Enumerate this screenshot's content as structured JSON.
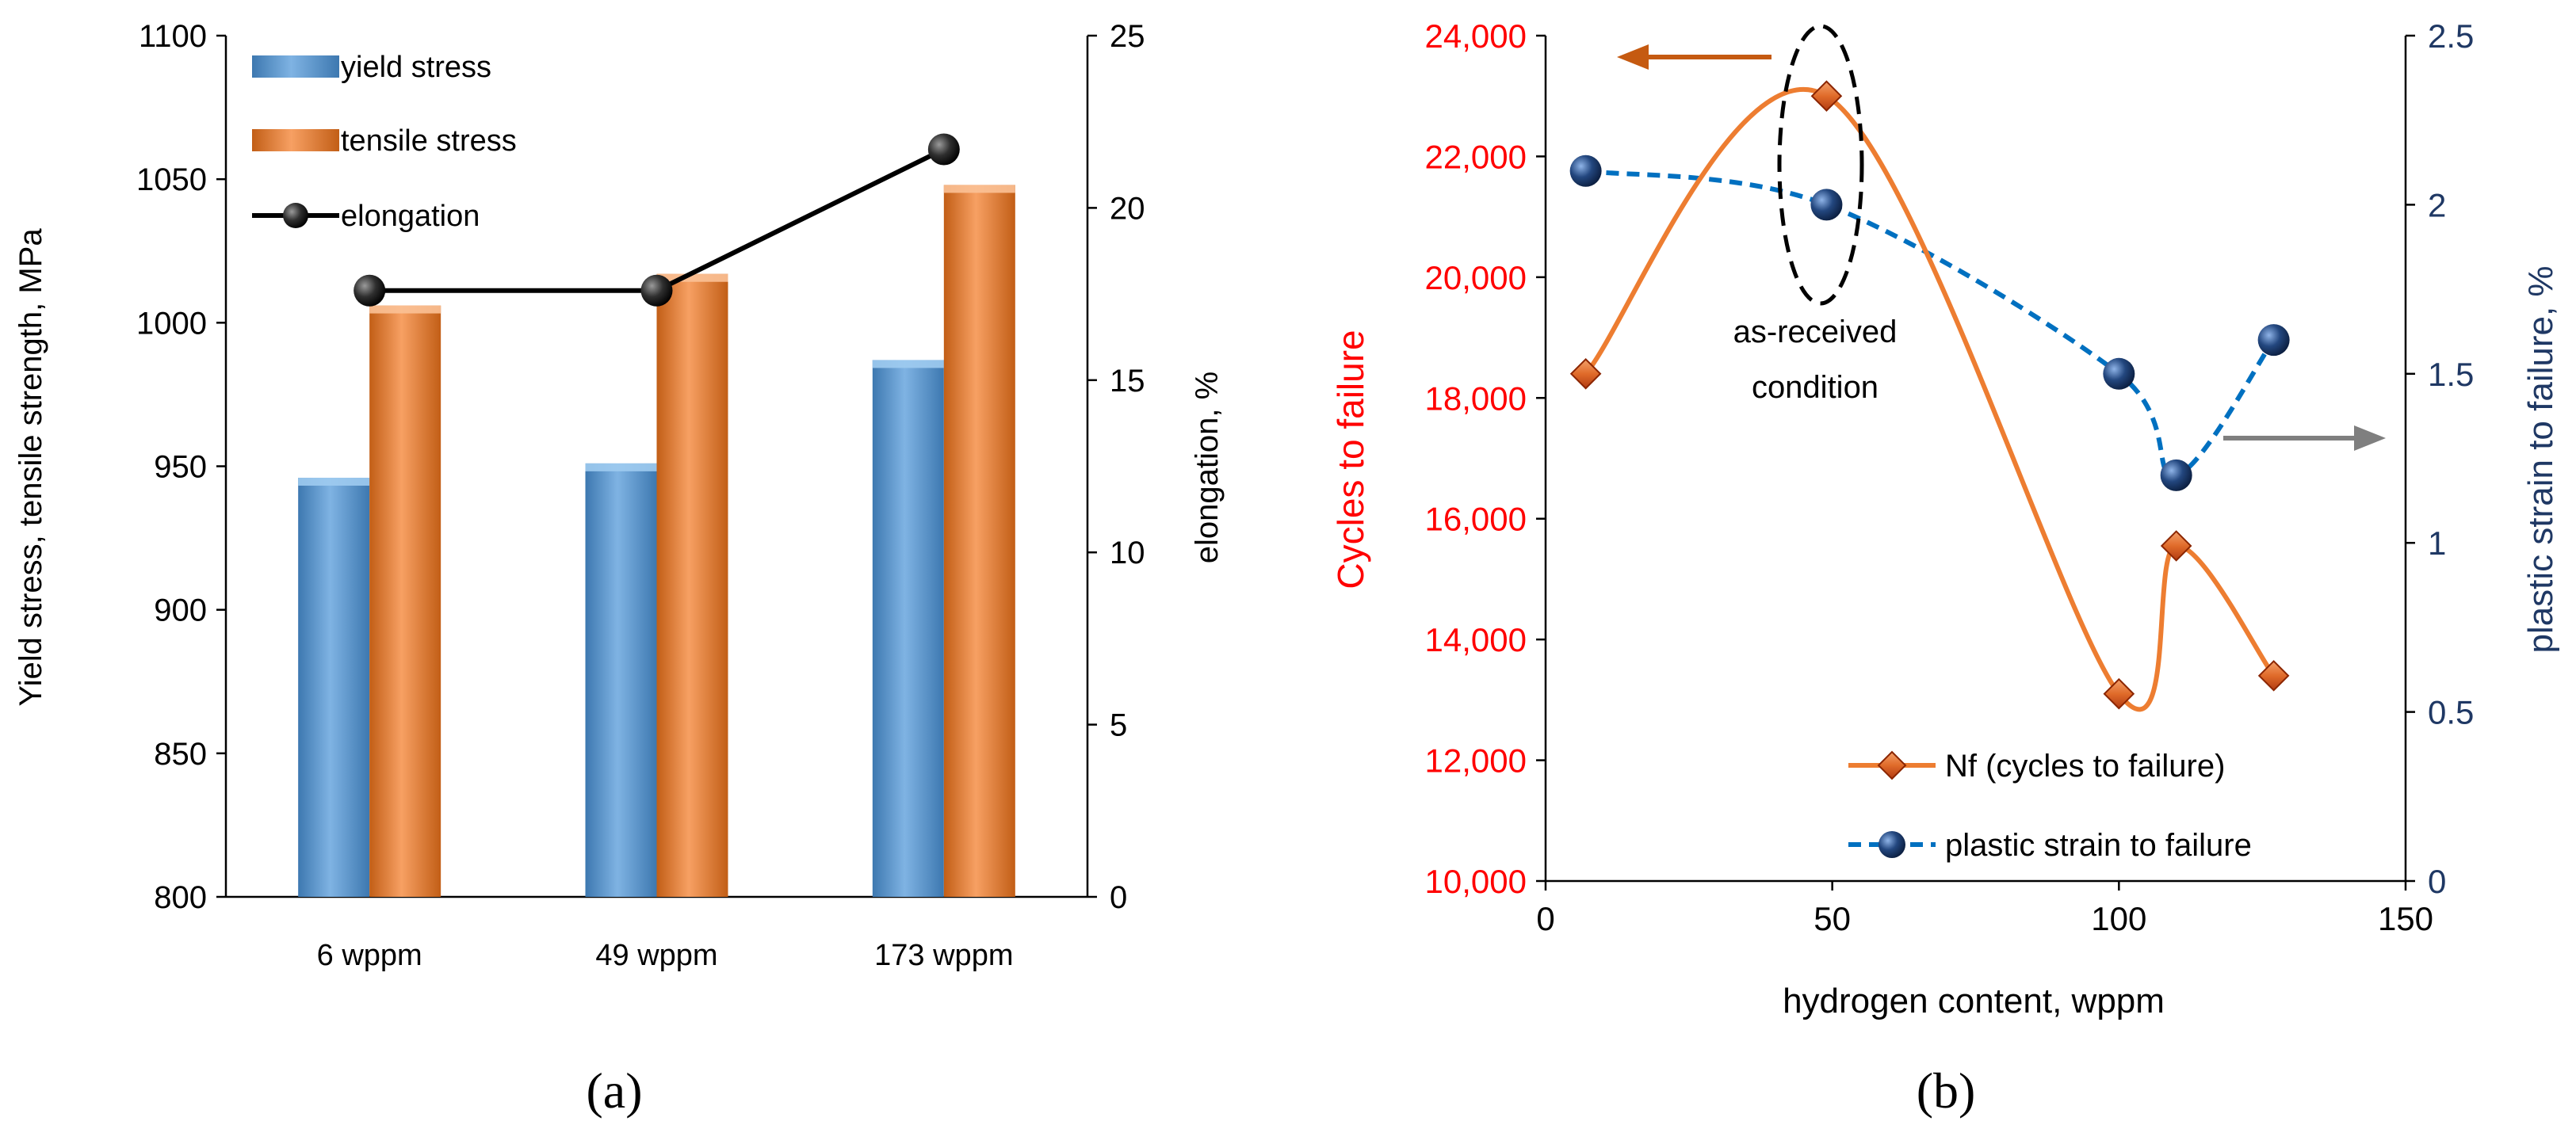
{
  "chart_data": [
    {
      "panel": "a",
      "type": "bar",
      "caption": "(a)",
      "categories": [
        "6 wppm",
        "49 wppm",
        "173 wppm"
      ],
      "series": [
        {
          "name": "yield stress",
          "axis": "left",
          "values": [
            946,
            951,
            987
          ],
          "color": "#5B9BD5"
        },
        {
          "name": "tensile stress",
          "axis": "left",
          "values": [
            1006,
            1017,
            1048
          ],
          "color": "#ED7D31"
        },
        {
          "name": "elongation",
          "axis": "right",
          "type": "line",
          "values": [
            17.6,
            17.6,
            21.7
          ],
          "color": "#000000"
        }
      ],
      "ylabel": "Yield stress, tensile strength, MPa",
      "ylabel_right": "elongation, %",
      "ylim": [
        800,
        1100
      ],
      "yticks": [
        "800",
        "850",
        "900",
        "950",
        "1000",
        "1050",
        "1100"
      ],
      "ylim_right": [
        0,
        25
      ],
      "yticks_right": [
        "0",
        "5",
        "10",
        "15",
        "20",
        "25"
      ],
      "legend": [
        "yield stress",
        "tensile stress",
        "elongation"
      ],
      "legend_position": "top-left"
    },
    {
      "panel": "b",
      "type": "line",
      "caption": "(b)",
      "xlabel": "hydrogen content, wppm",
      "xlim": [
        0,
        150
      ],
      "xticks": [
        "0",
        "50",
        "100",
        "150"
      ],
      "ylabel": "Cycles to failure",
      "ylim": [
        10000,
        24000
      ],
      "yticks": [
        "10,000",
        "12,000",
        "14,000",
        "16,000",
        "18,000",
        "20,000",
        "22,000",
        "24,000"
      ],
      "ylabel_right": "plastic strain to failure, %",
      "ylim_right": [
        0,
        2.5
      ],
      "yticks_right": [
        "0",
        "0.5",
        "1",
        "1.5",
        "2",
        "2.5"
      ],
      "series": [
        {
          "name": "Nf (cycles to failure)",
          "axis": "left",
          "x": [
            7,
            49,
            100,
            110,
            127
          ],
          "y": [
            18400,
            23000,
            13100,
            15550,
            13400
          ],
          "color": "#ED7D31"
        },
        {
          "name": "plastic strain to failure",
          "axis": "right",
          "x": [
            7,
            49,
            100,
            110,
            127
          ],
          "y": [
            2.1,
            2.0,
            1.5,
            1.2,
            1.6
          ],
          "color": "#0070C0"
        }
      ],
      "legend": [
        "Nf (cycles to failure)",
        "plastic strain to failure"
      ],
      "legend_position": "bottom-right",
      "annotations": {
        "condition_line1": "as-received",
        "condition_line2": "condition"
      },
      "colors": {
        "left_axis": "#FF0000",
        "right_axis": "#1F3864",
        "left_arrow": "#C55A11",
        "right_arrow": "#7F7F7F"
      }
    }
  ]
}
